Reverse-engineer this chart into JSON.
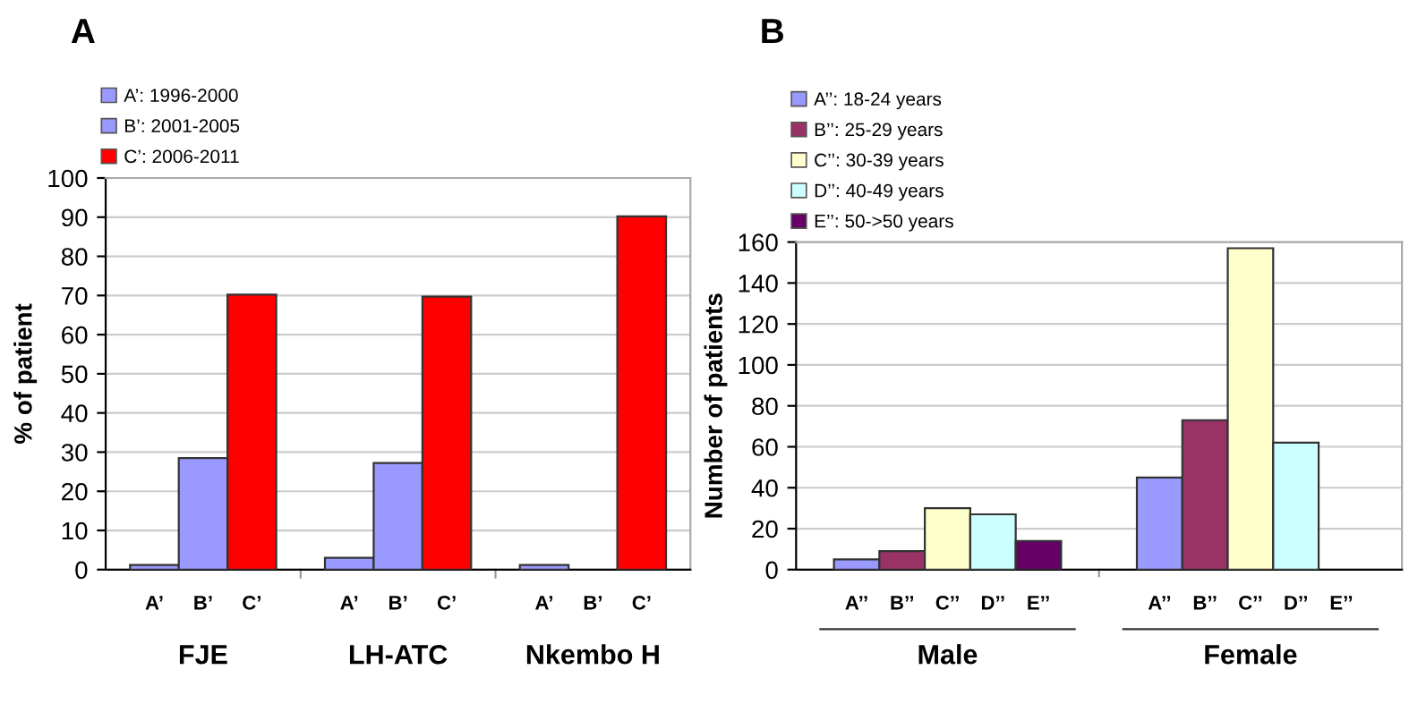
{
  "chart_data": [
    {
      "type": "bar",
      "title": "A",
      "ylabel": "% of patient",
      "categories": [
        "FJE",
        "LH-ATC",
        "Nkembo H"
      ],
      "series": [
        {
          "name": "A’: 1996-2000",
          "color": "#9999ff",
          "values": [
            1.2,
            3,
            1.2
          ]
        },
        {
          "name": "B’: 2001-2005",
          "color": "#9999ff",
          "values": [
            28.5,
            27.2,
            null
          ]
        },
        {
          "name": "C’: 2006-2011",
          "color": "#ff0000",
          "values": [
            70.2,
            69.7,
            90.2
          ]
        }
      ],
      "annotations": [
        "A’",
        "B’",
        "C’",
        "A’",
        "B’",
        "C’",
        "A’",
        "B’",
        "C’"
      ],
      "ylim": [
        0,
        100
      ],
      "yticks": [
        0,
        10,
        20,
        30,
        40,
        50,
        60,
        70,
        80,
        90,
        100
      ],
      "grid": "y",
      "legend": "top left"
    },
    {
      "type": "bar",
      "title": "B",
      "ylabel": "Number of patients",
      "categories": [
        "Male",
        "Female"
      ],
      "series": [
        {
          "name": "A’’: 18-24 years",
          "color": "#9999ff",
          "values": [
            5,
            45
          ]
        },
        {
          "name": "B’’: 25-29 years",
          "color": "#993366",
          "values": [
            9,
            73
          ]
        },
        {
          "name": "C’’: 30-39 years",
          "color": "#ffffcc",
          "values": [
            30,
            157
          ]
        },
        {
          "name": "D’’: 40-49 years",
          "color": "#ccffff",
          "values": [
            27,
            62
          ]
        },
        {
          "name": "E’’: 50->50 years",
          "color": "#660066",
          "values": [
            14,
            null
          ]
        }
      ],
      "annotations": [
        "A’’",
        "B’’",
        "C’’",
        "D’’",
        "E’’",
        "A’’",
        "B’’",
        "C’’",
        "D’’",
        "E’’"
      ],
      "ylim": [
        0,
        160
      ],
      "yticks": [
        0,
        20,
        40,
        60,
        80,
        100,
        120,
        140,
        160
      ],
      "grid": "y",
      "legend": "top left"
    }
  ]
}
